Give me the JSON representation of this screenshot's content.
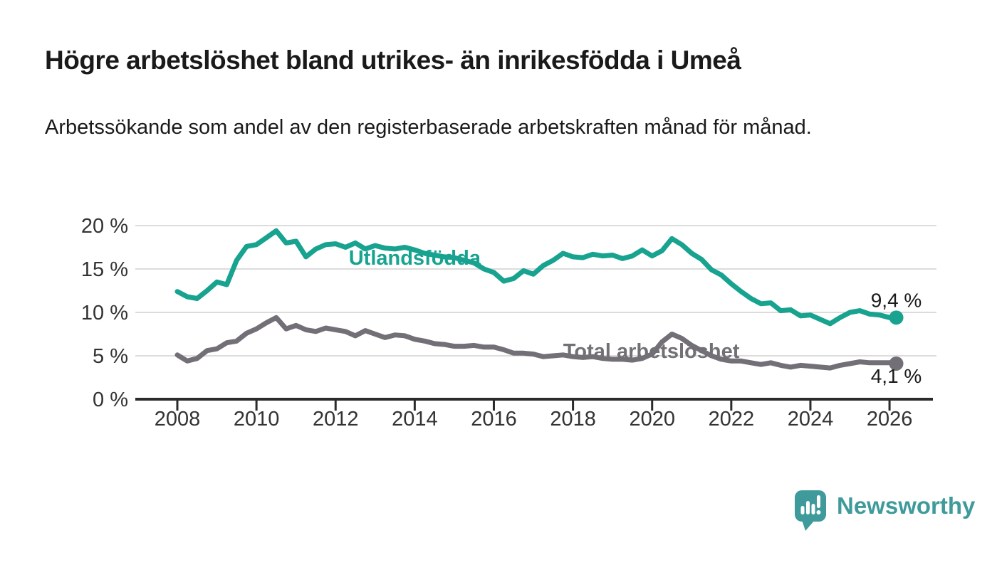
{
  "header": {
    "title": "Högre arbetslöshet bland utrikes- än inrikesfödda i Umeå",
    "subtitle": "Arbetssökande som andel av den registerbaserade arbetskraften månad för månad."
  },
  "footer": {
    "brand": "Newsworthy"
  },
  "colors": {
    "series_foreign": "#17a38f",
    "series_total": "#727076",
    "grid": "#dcdcdc",
    "axis": "#2b2b2b",
    "tick_text": "#333333",
    "annotation_text": "#1a1a1a",
    "brand_teal": "#3f9b9b"
  },
  "chart_data": {
    "type": "line",
    "title": "",
    "xlabel": "",
    "ylabel": "",
    "grid": "horizontal",
    "ylim": [
      0,
      21
    ],
    "yticks": [
      {
        "value": 0,
        "label": "0 %"
      },
      {
        "value": 5,
        "label": "5 %"
      },
      {
        "value": 10,
        "label": "10 %"
      },
      {
        "value": 15,
        "label": "15 %"
      },
      {
        "value": 20,
        "label": "20 %"
      }
    ],
    "xticks": [
      {
        "value": 2008,
        "label": "2008"
      },
      {
        "value": 2010,
        "label": "2010"
      },
      {
        "value": 2012,
        "label": "2012"
      },
      {
        "value": 2014,
        "label": "2014"
      },
      {
        "value": 2016,
        "label": "2016"
      },
      {
        "value": 2018,
        "label": "2018"
      },
      {
        "value": 2020,
        "label": "2020"
      },
      {
        "value": 2022,
        "label": "2022"
      },
      {
        "value": 2024,
        "label": "2024"
      },
      {
        "value": 2026,
        "label": "2026"
      }
    ],
    "x": [
      2008.0,
      2008.25,
      2008.5,
      2008.75,
      2009.0,
      2009.25,
      2009.5,
      2009.75,
      2010.0,
      2010.25,
      2010.5,
      2010.75,
      2011.0,
      2011.25,
      2011.5,
      2011.75,
      2012.0,
      2012.25,
      2012.5,
      2012.75,
      2013.0,
      2013.25,
      2013.5,
      2013.75,
      2014.0,
      2014.25,
      2014.5,
      2014.75,
      2015.0,
      2015.25,
      2015.5,
      2015.75,
      2016.0,
      2016.25,
      2016.5,
      2016.75,
      2017.0,
      2017.25,
      2017.5,
      2017.75,
      2018.0,
      2018.25,
      2018.5,
      2018.75,
      2019.0,
      2019.25,
      2019.5,
      2019.75,
      2020.0,
      2020.25,
      2020.5,
      2020.75,
      2021.0,
      2021.25,
      2021.5,
      2021.75,
      2022.0,
      2022.25,
      2022.5,
      2022.75,
      2023.0,
      2023.25,
      2023.5,
      2023.75,
      2024.0,
      2024.25,
      2024.5,
      2024.75,
      2025.0,
      2025.25,
      2025.5,
      2025.75,
      2026.0,
      2026.17
    ],
    "series": [
      {
        "name": "Utlandsfödda",
        "color_key": "series_foreign",
        "end_dot": true,
        "end_annotation": {
          "text": "9,4 %",
          "dy": -15
        },
        "inline_label": {
          "text": "Utlandsfödda",
          "x": 2014.0,
          "y": 15.5
        },
        "values": [
          12.4,
          11.8,
          11.6,
          12.5,
          13.5,
          13.2,
          16.0,
          17.6,
          17.8,
          18.6,
          19.4,
          18.0,
          18.2,
          16.4,
          17.3,
          17.8,
          17.9,
          17.5,
          18.0,
          17.3,
          17.7,
          17.4,
          17.3,
          17.5,
          17.2,
          16.8,
          16.6,
          16.4,
          16.3,
          16.0,
          15.7,
          15.0,
          14.6,
          13.6,
          13.9,
          14.8,
          14.4,
          15.4,
          16.0,
          16.8,
          16.4,
          16.3,
          16.7,
          16.5,
          16.6,
          16.2,
          16.5,
          17.2,
          16.5,
          17.1,
          18.5,
          17.8,
          16.8,
          16.1,
          14.9,
          14.3,
          13.3,
          12.4,
          11.6,
          11.0,
          11.1,
          10.2,
          10.3,
          9.6,
          9.7,
          9.2,
          8.7,
          9.4,
          10.0,
          10.2,
          9.8,
          9.7,
          9.4,
          9.4
        ]
      },
      {
        "name": "Total arbetslöshet",
        "color_key": "series_total",
        "end_dot": true,
        "end_annotation": {
          "text": "4,1 %",
          "dy": 27
        },
        "inline_label": {
          "text": "Total arbetslöshet",
          "x": 2019.98,
          "y": 4.75
        },
        "values": [
          5.1,
          4.4,
          4.7,
          5.6,
          5.8,
          6.5,
          6.7,
          7.6,
          8.1,
          8.8,
          9.4,
          8.1,
          8.5,
          8.0,
          7.8,
          8.2,
          8.0,
          7.8,
          7.3,
          7.9,
          7.5,
          7.1,
          7.4,
          7.3,
          6.9,
          6.7,
          6.4,
          6.3,
          6.1,
          6.1,
          6.2,
          6.0,
          6.0,
          5.7,
          5.3,
          5.3,
          5.2,
          4.9,
          5.0,
          5.1,
          4.9,
          4.8,
          4.9,
          4.7,
          4.6,
          4.6,
          4.5,
          4.7,
          5.2,
          6.6,
          7.5,
          7.0,
          6.2,
          5.6,
          5.0,
          4.6,
          4.4,
          4.4,
          4.2,
          4.0,
          4.2,
          3.9,
          3.7,
          3.9,
          3.8,
          3.7,
          3.6,
          3.9,
          4.1,
          4.3,
          4.2,
          4.2,
          4.2,
          4.1
        ]
      }
    ]
  }
}
